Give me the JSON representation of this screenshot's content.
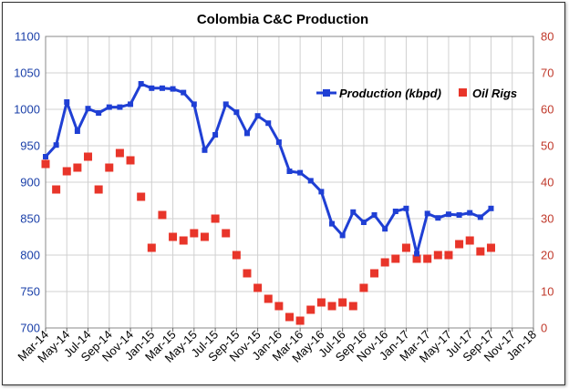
{
  "chart_data": {
    "type": "line",
    "title": "Colombia C&C Production",
    "x_tick_labels": [
      "Mar-14",
      "May-14",
      "Jul-14",
      "Sep-14",
      "Nov-14",
      "Jan-15",
      "Mar-15",
      "May-15",
      "Jul-15",
      "Sep-15",
      "Nov-15",
      "Jan-16",
      "Mar-16",
      "May-16",
      "Jul-16",
      "Sep-16",
      "Nov-16",
      "Jan-17",
      "Mar-17",
      "May-17",
      "Jul-17",
      "Sep-17",
      "Nov-17",
      "Jan-18"
    ],
    "x_start": "2014-03",
    "x_end": "2018-01",
    "y_left": {
      "min": 700,
      "max": 1100,
      "step": 50,
      "color": "#1a3fa8"
    },
    "y_right": {
      "min": 0,
      "max": 80,
      "step": 10,
      "color": "#c0392b"
    },
    "grid": true,
    "legend_position": "top-right",
    "series": [
      {
        "name": "Production (kbpd)",
        "axis": "left",
        "style": "line-markers",
        "color": "#1f3fd4",
        "x": [
          "2014-03",
          "2014-04",
          "2014-05",
          "2014-06",
          "2014-07",
          "2014-08",
          "2014-09",
          "2014-10",
          "2014-11",
          "2014-12",
          "2015-01",
          "2015-02",
          "2015-03",
          "2015-04",
          "2015-05",
          "2015-06",
          "2015-07",
          "2015-08",
          "2015-09",
          "2015-10",
          "2015-11",
          "2015-12",
          "2016-01",
          "2016-02",
          "2016-03",
          "2016-04",
          "2016-05",
          "2016-06",
          "2016-07",
          "2016-08",
          "2016-09",
          "2016-10",
          "2016-11",
          "2016-12",
          "2017-01",
          "2017-02",
          "2017-03",
          "2017-04",
          "2017-05",
          "2017-06",
          "2017-07",
          "2017-08",
          "2017-09",
          "2017-10"
        ],
        "values": [
          935,
          951,
          1010,
          970,
          1001,
          995,
          1003,
          1003,
          1007,
          1035,
          1029,
          1029,
          1028,
          1023,
          1007,
          944,
          965,
          1007,
          996,
          967,
          991,
          981,
          955,
          915,
          913,
          902,
          887,
          843,
          827,
          859,
          845,
          855,
          836,
          860,
          864,
          802,
          857,
          851,
          856,
          855,
          858,
          852,
          864,
          null
        ]
      },
      {
        "name": "Oil Rigs",
        "axis": "right",
        "style": "markers",
        "color": "#e8352a",
        "x": [
          "2014-03",
          "2014-04",
          "2014-05",
          "2014-06",
          "2014-07",
          "2014-08",
          "2014-09",
          "2014-10",
          "2014-11",
          "2014-12",
          "2015-01",
          "2015-02",
          "2015-03",
          "2015-04",
          "2015-05",
          "2015-06",
          "2015-07",
          "2015-08",
          "2015-09",
          "2015-10",
          "2015-11",
          "2015-12",
          "2016-01",
          "2016-02",
          "2016-03",
          "2016-04",
          "2016-05",
          "2016-06",
          "2016-07",
          "2016-08",
          "2016-09",
          "2016-10",
          "2016-11",
          "2016-12",
          "2017-01",
          "2017-02",
          "2017-03",
          "2017-04",
          "2017-05",
          "2017-06",
          "2017-07",
          "2017-08",
          "2017-09",
          "2017-10"
        ],
        "values": [
          45,
          38,
          43,
          44,
          47,
          38,
          44,
          48,
          46,
          36,
          22,
          31,
          25,
          24,
          26,
          25,
          30,
          26,
          20,
          15,
          11,
          8,
          6,
          3,
          2,
          5,
          7,
          6,
          7,
          6,
          11,
          15,
          18,
          19,
          22,
          19,
          19,
          20,
          20,
          23,
          24,
          21,
          22,
          null
        ]
      }
    ]
  }
}
